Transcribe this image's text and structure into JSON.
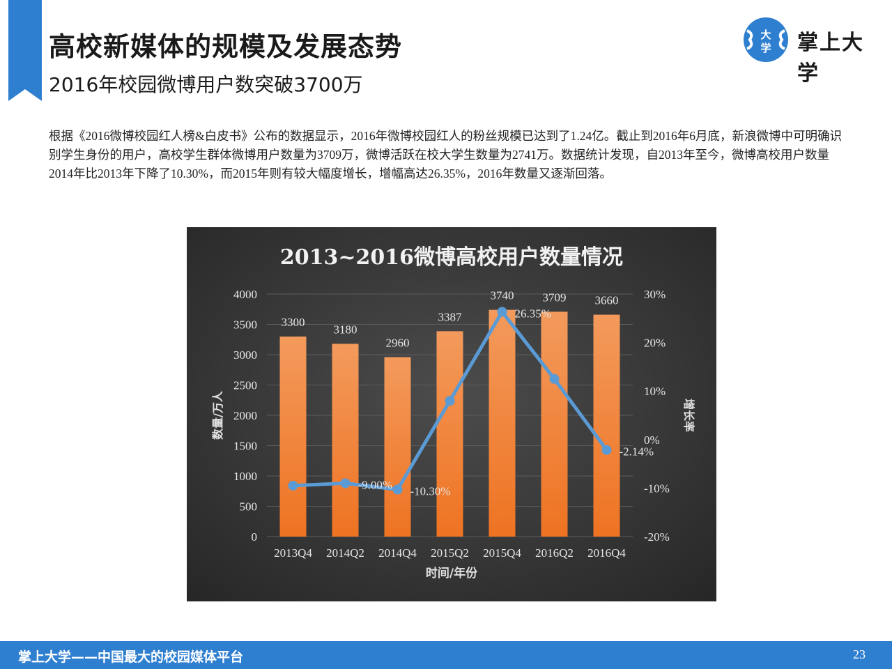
{
  "slide": {
    "title": "高校新媒体的规模及发展态势",
    "subtitle": "2016年校园微博用户数突破3700万",
    "paragraph": "根据《2016微博校园红人榜&白皮书》公布的数据显示，2016年微博校园红人的粉丝规模已达到了1.24亿。截止到2016年6月底，新浪微博中可明确识别学生身份的用户，高校学生群体微博用户数量为3709万，微博活跃在校大学生数量为2741万。数据统计发现，自2013年至今，微博高校用户数量2014年比2013年下降了10.30%，而2015年则有较大幅度增长，增幅高达26.35%，2016年数量又逐渐回落。"
  },
  "logo": {
    "mark_top": "大",
    "mark_bottom": "学",
    "text": "掌上大学"
  },
  "footer": {
    "text": "掌上大学——中国最大的校园媒体平台",
    "page": "23"
  },
  "colors": {
    "accent": "#2f7fd0",
    "bar": "#f07a28",
    "line": "#5b9bd5",
    "chart_bg": "#3d3d3d"
  },
  "chart_data": {
    "type": "bar+line",
    "title": "2013~2016微博高校用户数量情况",
    "xlabel": "时间/年份",
    "ylabel": "数量/万人",
    "y2label": "增长率",
    "categories": [
      "2013Q4",
      "2014Q2",
      "2014Q4",
      "2015Q2",
      "2015Q4",
      "2016Q2",
      "2016Q4"
    ],
    "series": [
      {
        "axis": "left",
        "type": "bar",
        "values": [
          3300,
          3180,
          2960,
          3387,
          3740,
          3709,
          3660
        ],
        "labels": [
          "3300",
          "3180",
          "2960",
          "3387",
          "3740",
          "3709",
          "3660"
        ]
      },
      {
        "axis": "right",
        "type": "line",
        "values": [
          -9.5,
          -9.0,
          -10.3,
          8.0,
          26.35,
          12.5,
          -2.14
        ],
        "labels": [
          "",
          "-9.00%",
          "-10.30%",
          "",
          "26.35%",
          "",
          "-2.14%"
        ]
      }
    ],
    "ylim": [
      0,
      4000
    ],
    "yticks": [
      "0",
      "500",
      "1000",
      "1500",
      "2000",
      "2500",
      "3000",
      "3500",
      "4000"
    ],
    "y2lim": [
      -20,
      30
    ],
    "y2ticks": [
      "-20%",
      "-10%",
      "0%",
      "10%",
      "20%",
      "30%"
    ],
    "grid": true,
    "legend": "none"
  }
}
